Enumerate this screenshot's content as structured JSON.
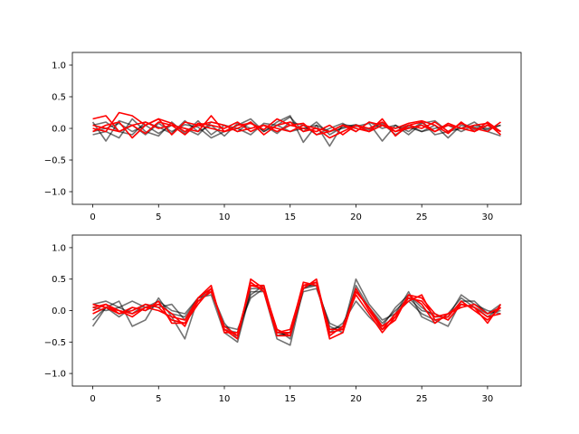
{
  "chart_data": [
    {
      "type": "line",
      "title": "",
      "xlabel": "",
      "ylabel": "",
      "xlim": [
        -1.55,
        32.55
      ],
      "ylim": [
        -1.2,
        1.2
      ],
      "xticks": [
        0,
        5,
        10,
        15,
        20,
        25,
        30
      ],
      "yticks": [
        -1.0,
        -0.5,
        0.0,
        0.5,
        1.0
      ],
      "ytick_labels": [
        "−1.0",
        "−0.5",
        "0.0",
        "0.5",
        "1.0"
      ],
      "grid": false,
      "legend": "none",
      "colors": {
        "gray": "#000000",
        "red": "#ff0000",
        "axes": "#000000"
      },
      "series": [
        {
          "color": "gray",
          "values": [
            0.1,
            -0.2,
            0.12,
            0.05,
            -0.1,
            0.08,
            -0.05,
            0.06,
            0.02,
            -0.15,
            -0.05,
            0.05,
            0.15,
            -0.05,
            0.1,
            0.2,
            -0.22,
            0.05,
            -0.28,
            0.06,
            0.03,
            0.08,
            -0.2,
            0.05,
            -0.05,
            0.1,
            -0.1,
            -0.05,
            0.08,
            -0.02,
            0.05,
            -0.05
          ]
        },
        {
          "color": "gray",
          "values": [
            -0.1,
            -0.05,
            -0.15,
            0.15,
            -0.05,
            -0.12,
            0.1,
            -0.08,
            0.12,
            -0.1,
            0.05,
            0.0,
            -0.1,
            0.08,
            0.05,
            0.18,
            -0.05,
            0.1,
            -0.1,
            0.02,
            0.06,
            -0.02,
            0.08,
            -0.1,
            0.02,
            -0.05,
            0.05,
            -0.15,
            0.05,
            0.02,
            -0.02,
            0.05
          ]
        },
        {
          "color": "gray",
          "values": [
            0.05,
            0.1,
            -0.05,
            -0.1,
            0.1,
            0.02,
            -0.08,
            0.12,
            -0.05,
            0.05,
            -0.12,
            0.08,
            0.0,
            0.05,
            -0.08,
            0.1,
            0.05,
            -0.1,
            0.0,
            0.08,
            -0.05,
            0.1,
            0.0,
            0.05,
            -0.1,
            0.08,
            0.12,
            -0.05,
            0.0,
            0.1,
            -0.05,
            -0.12
          ]
        },
        {
          "color": "gray",
          "values": [
            -0.05,
            0.0,
            0.08,
            -0.05,
            0.05,
            -0.08,
            0.05,
            0.0,
            -0.1,
            0.1,
            0.05,
            -0.05,
            0.1,
            -0.05,
            0.05,
            -0.05,
            0.0,
            0.05,
            -0.05,
            0.0,
            0.05,
            -0.05,
            0.05,
            0.0,
            0.05,
            -0.05,
            0.0,
            0.05,
            -0.05,
            0.05,
            0.0,
            0.05
          ]
        },
        {
          "color": "red",
          "values": [
            0.15,
            0.2,
            -0.05,
            0.05,
            -0.08,
            0.1,
            0.05,
            0.0,
            -0.05,
            0.2,
            -0.05,
            0.05,
            0.08,
            -0.02,
            0.15,
            0.05,
            0.0,
            -0.05,
            0.05,
            -0.1,
            0.05,
            0.0,
            0.1,
            -0.05,
            0.05,
            0.1,
            -0.05,
            0.05,
            0.0,
            0.05,
            0.08,
            -0.1
          ]
        },
        {
          "color": "red",
          "values": [
            0.0,
            -0.05,
            0.25,
            0.2,
            0.05,
            0.15,
            -0.1,
            0.1,
            0.05,
            0.0,
            -0.05,
            0.0,
            0.1,
            -0.1,
            0.05,
            0.1,
            -0.05,
            0.0,
            -0.15,
            -0.05,
            0.05,
            -0.05,
            0.15,
            -0.12,
            0.05,
            0.0,
            0.1,
            -0.05,
            0.08,
            0.0,
            -0.05,
            0.1
          ]
        },
        {
          "color": "red",
          "values": [
            -0.05,
            0.05,
            0.1,
            -0.15,
            0.05,
            0.15,
            0.08,
            -0.05,
            0.05,
            0.1,
            0.05,
            -0.05,
            0.0,
            0.05,
            -0.05,
            0.05,
            0.08,
            -0.1,
            -0.05,
            0.05,
            -0.05,
            0.1,
            0.05,
            0.0,
            0.08,
            0.12,
            0.05,
            -0.08,
            0.1,
            -0.05,
            0.05,
            -0.05
          ]
        },
        {
          "color": "red",
          "values": [
            0.05,
            0.0,
            -0.05,
            0.05,
            0.1,
            0.0,
            0.05,
            -0.1,
            0.08,
            0.05,
            0.0,
            0.1,
            -0.05,
            0.05,
            0.0,
            -0.05,
            0.05,
            0.0,
            -0.05,
            0.05,
            0.0,
            -0.05,
            0.05,
            -0.05,
            0.0,
            0.05,
            -0.05,
            0.08,
            0.0,
            -0.05,
            0.1,
            -0.05
          ]
        }
      ]
    },
    {
      "type": "line",
      "title": "",
      "xlabel": "",
      "ylabel": "",
      "xlim": [
        -1.55,
        32.55
      ],
      "ylim": [
        -1.2,
        1.2
      ],
      "xticks": [
        0,
        5,
        10,
        15,
        20,
        25,
        30
      ],
      "yticks": [
        -1.0,
        -0.5,
        0.0,
        0.5,
        1.0
      ],
      "ytick_labels": [
        "−1.0",
        "−0.5",
        "0.0",
        "0.5",
        "1.0"
      ],
      "grid": false,
      "legend": "none",
      "colors": {
        "gray": "#000000",
        "red": "#ff0000",
        "axes": "#000000"
      },
      "series": [
        {
          "color": "gray",
          "values": [
            -0.25,
            0.05,
            0.15,
            -0.25,
            -0.15,
            0.2,
            -0.1,
            -0.45,
            0.2,
            0.25,
            -0.35,
            -0.5,
            0.3,
            0.3,
            -0.45,
            -0.55,
            0.35,
            0.4,
            -0.35,
            -0.2,
            0.15,
            -0.1,
            -0.3,
            -0.05,
            0.3,
            -0.1,
            -0.2,
            -0.05,
            0.2,
            0.05,
            -0.1,
            0.05
          ]
        },
        {
          "color": "gray",
          "values": [
            0.1,
            0.15,
            0.05,
            0.15,
            0.05,
            0.15,
            0.0,
            -0.05,
            0.2,
            0.3,
            -0.25,
            -0.3,
            0.2,
            0.35,
            -0.35,
            -0.4,
            0.3,
            0.35,
            -0.2,
            -0.3,
            0.5,
            0.1,
            -0.15,
            -0.05,
            0.15,
            -0.05,
            -0.15,
            -0.25,
            0.15,
            0.15,
            -0.05,
            0.1
          ]
        },
        {
          "color": "gray",
          "values": [
            -0.15,
            0.05,
            -0.1,
            0.05,
            0.0,
            0.1,
            -0.05,
            -0.1,
            0.2,
            0.35,
            -0.3,
            -0.35,
            0.25,
            0.4,
            -0.4,
            -0.35,
            0.35,
            0.45,
            -0.3,
            -0.25,
            0.35,
            0.0,
            -0.25,
            0.05,
            0.25,
            0.05,
            -0.1,
            -0.1,
            0.25,
            0.1,
            0.0,
            -0.05
          ]
        },
        {
          "color": "gray",
          "values": [
            0.05,
            0.0,
            0.05,
            -0.05,
            0.1,
            0.05,
            0.1,
            -0.15,
            0.15,
            0.3,
            -0.2,
            -0.45,
            0.35,
            0.35,
            -0.3,
            -0.45,
            0.4,
            0.4,
            -0.25,
            -0.35,
            0.4,
            0.05,
            -0.2,
            0.0,
            0.2,
            0.0,
            -0.05,
            -0.15,
            0.1,
            0.05,
            -0.05,
            0.0
          ]
        },
        {
          "color": "red",
          "values": [
            0.1,
            0.05,
            -0.05,
            0.05,
            0.0,
            0.15,
            -0.2,
            -0.2,
            0.1,
            0.35,
            -0.3,
            -0.45,
            0.5,
            0.35,
            -0.35,
            -0.3,
            0.4,
            0.45,
            -0.45,
            -0.35,
            0.3,
            0.05,
            -0.3,
            -0.15,
            0.25,
            0.2,
            -0.05,
            -0.15,
            0.1,
            0.05,
            -0.1,
            -0.05
          ]
        },
        {
          "color": "red",
          "values": [
            0.0,
            0.1,
            -0.05,
            0.0,
            0.1,
            0.05,
            -0.15,
            -0.2,
            0.15,
            0.3,
            -0.25,
            -0.4,
            0.45,
            0.3,
            -0.4,
            -0.4,
            0.35,
            0.5,
            -0.4,
            -0.25,
            0.25,
            -0.05,
            -0.35,
            -0.1,
            0.2,
            0.15,
            -0.1,
            -0.05,
            0.05,
            0.1,
            -0.05,
            0.05
          ]
        },
        {
          "color": "red",
          "values": [
            -0.05,
            0.05,
            0.0,
            -0.05,
            0.05,
            0.1,
            -0.05,
            -0.25,
            0.2,
            0.4,
            -0.35,
            -0.35,
            0.4,
            0.4,
            -0.35,
            -0.35,
            0.45,
            0.4,
            -0.3,
            -0.3,
            0.35,
            0.0,
            -0.3,
            -0.05,
            0.15,
            0.25,
            -0.15,
            -0.1,
            0.15,
            0.0,
            -0.15,
            0.05
          ]
        },
        {
          "color": "red",
          "values": [
            0.05,
            0.1,
            0.0,
            -0.1,
            0.05,
            0.0,
            -0.1,
            -0.15,
            0.2,
            0.35,
            -0.3,
            -0.4,
            0.4,
            0.35,
            -0.3,
            -0.4,
            0.4,
            0.45,
            -0.35,
            -0.3,
            0.3,
            0.05,
            -0.25,
            -0.1,
            0.25,
            0.1,
            -0.2,
            -0.05,
            0.1,
            0.05,
            -0.2,
            0.1
          ]
        }
      ]
    }
  ]
}
